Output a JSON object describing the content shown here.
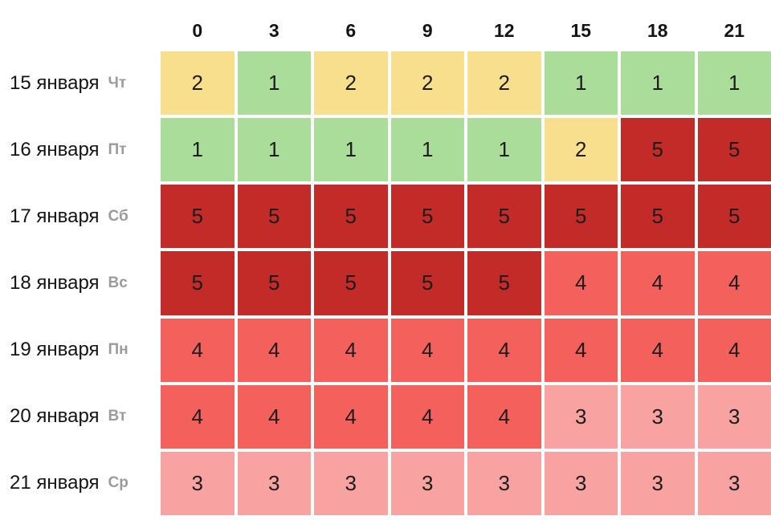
{
  "colors": {
    "background": "#ffffff",
    "header_text": "#141414",
    "date_text": "#141414",
    "weekday_text": "#9b9b9b",
    "cell_text": "#1c1c1c",
    "level_1": "#abdd9a",
    "level_2": "#f8df8d",
    "level_3": "#f9a2a2",
    "level_4": "#f4615d",
    "level_5": "#c22b28"
  },
  "chart_data": {
    "type": "heatmap",
    "title": "",
    "x_ticks": [
      "0",
      "3",
      "6",
      "9",
      "12",
      "15",
      "18",
      "21"
    ],
    "value_range": [
      1,
      5
    ],
    "color_levels": {
      "1": "#abdd9a",
      "2": "#f8df8d",
      "3": "#f9a2a2",
      "4": "#f4615d",
      "5": "#c22b28"
    },
    "rows": [
      {
        "date": "15 января",
        "weekday": "Чт",
        "values": [
          2,
          1,
          2,
          2,
          2,
          1,
          1,
          1
        ]
      },
      {
        "date": "16 января",
        "weekday": "Пт",
        "values": [
          1,
          1,
          1,
          1,
          1,
          2,
          5,
          5
        ]
      },
      {
        "date": "17 января",
        "weekday": "Сб",
        "values": [
          5,
          5,
          5,
          5,
          5,
          5,
          5,
          5
        ]
      },
      {
        "date": "18 января",
        "weekday": "Вс",
        "values": [
          5,
          5,
          5,
          5,
          5,
          4,
          4,
          4
        ]
      },
      {
        "date": "19 января",
        "weekday": "Пн",
        "values": [
          4,
          4,
          4,
          4,
          4,
          4,
          4,
          4
        ]
      },
      {
        "date": "20 января",
        "weekday": "Вт",
        "values": [
          4,
          4,
          4,
          4,
          4,
          3,
          3,
          3
        ]
      },
      {
        "date": "21 января",
        "weekday": "Ср",
        "values": [
          3,
          3,
          3,
          3,
          3,
          3,
          3,
          3
        ]
      }
    ]
  }
}
